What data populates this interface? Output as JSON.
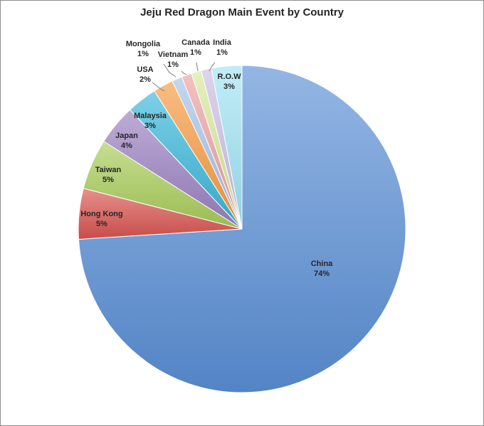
{
  "chart_data": {
    "type": "pie",
    "title": "Jeju Red Dragon Main Event by Country",
    "slices": [
      {
        "label": "China",
        "value": 74,
        "pct_label": "74%"
      },
      {
        "label": "Hong Kong",
        "value": 5,
        "pct_label": "5%"
      },
      {
        "label": "Taiwan",
        "value": 5,
        "pct_label": "5%"
      },
      {
        "label": "Japan",
        "value": 4,
        "pct_label": "4%"
      },
      {
        "label": "Malaysia",
        "value": 3,
        "pct_label": "3%"
      },
      {
        "label": "USA",
        "value": 2,
        "pct_label": "2%"
      },
      {
        "label": "Mongolia",
        "value": 1,
        "pct_label": "1%"
      },
      {
        "label": "Vietnam",
        "value": 1,
        "pct_label": "1%"
      },
      {
        "label": "Canada",
        "value": 1,
        "pct_label": "1%"
      },
      {
        "label": "India",
        "value": 1,
        "pct_label": "1%"
      },
      {
        "label": "R.O.W",
        "value": 3,
        "pct_label": "3%"
      }
    ],
    "colors": [
      "#5a8fd6",
      "#d9544f",
      "#a8cc58",
      "#9a7fc0",
      "#37b7d9",
      "#f7993f",
      "#a4c2ea",
      "#eda0a0",
      "#d6e89a",
      "#cbbde3",
      "#9fe3f4"
    ],
    "legend": "none",
    "start": "12 o'clock, clockwise"
  }
}
